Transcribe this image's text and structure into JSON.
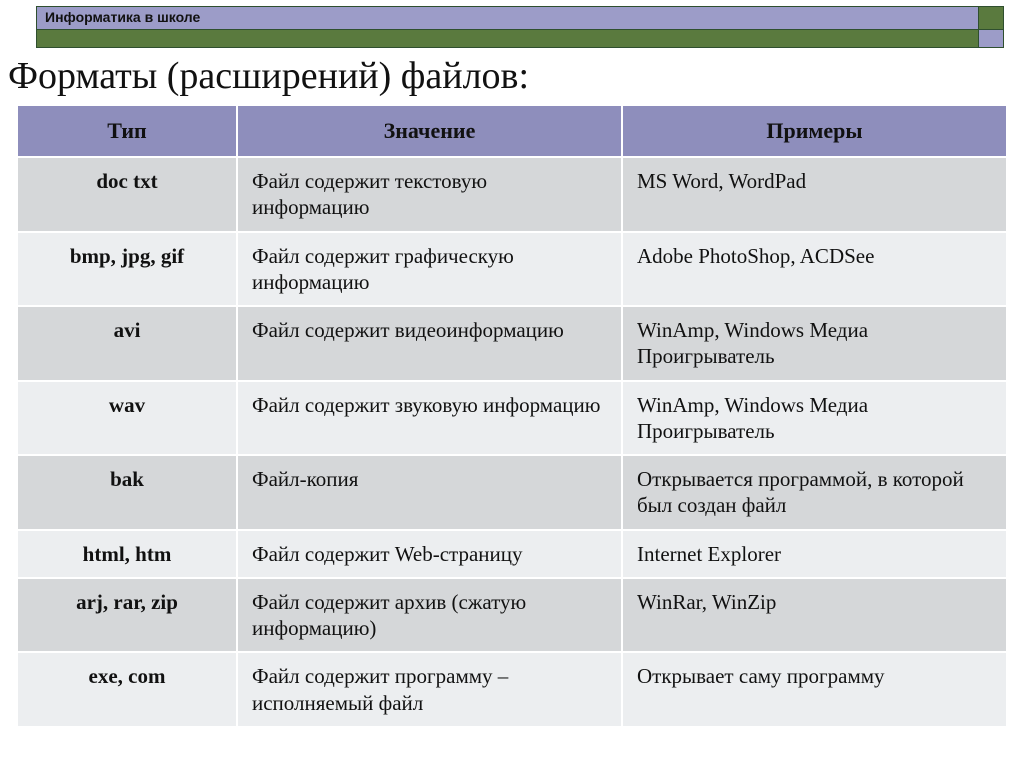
{
  "header": {
    "siteTitle": "Информатика в школе",
    "colors": {
      "lavender": "#9c9cc8",
      "green": "#5a7a3e",
      "border": "#2f4f2f"
    }
  },
  "page": {
    "title": "Форматы (расширений) файлов:",
    "title_fontsize": 38
  },
  "table": {
    "header_bg": "#8e8ebc",
    "row_even_bg": "#d5d7d9",
    "row_odd_bg": "#eceef0",
    "cell_fontsize": 21,
    "header_fontsize": 22,
    "type_col_width": 220,
    "columns": [
      "Тип",
      "Значение",
      "Примеры"
    ],
    "rows": [
      {
        "type": "doc txt",
        "meaning": "Файл содержит текстовую информацию",
        "examples": "MS Word, WordPad"
      },
      {
        "type": "bmp, jpg, gif",
        "meaning": "Файл содержит графическую информацию",
        "examples": "Adobe PhotoShop, ACDSee"
      },
      {
        "type": "avi",
        "meaning": "Файл содержит видеоинформацию",
        "examples": "WinAmp, Windows Медиа Проигрыватель"
      },
      {
        "type": "wav",
        "meaning": "Файл содержит звуковую информацию",
        "examples": "WinAmp, Windows Медиа Проигрыватель"
      },
      {
        "type": "bak",
        "meaning": "Файл-копия",
        "examples": "Открывается программой, в которой был создан файл"
      },
      {
        "type": "html, htm",
        "meaning": "Файл содержит Web-страницу",
        "examples": "Internet Explorer"
      },
      {
        "type": "arj, rar, zip",
        "meaning": "Файл содержит архив (сжатую информацию)",
        "examples": "WinRar, WinZip"
      },
      {
        "type": "exe, com",
        "meaning": "Файл содержит программу – исполняемый файл",
        "examples": "Открывает саму программу"
      }
    ]
  }
}
